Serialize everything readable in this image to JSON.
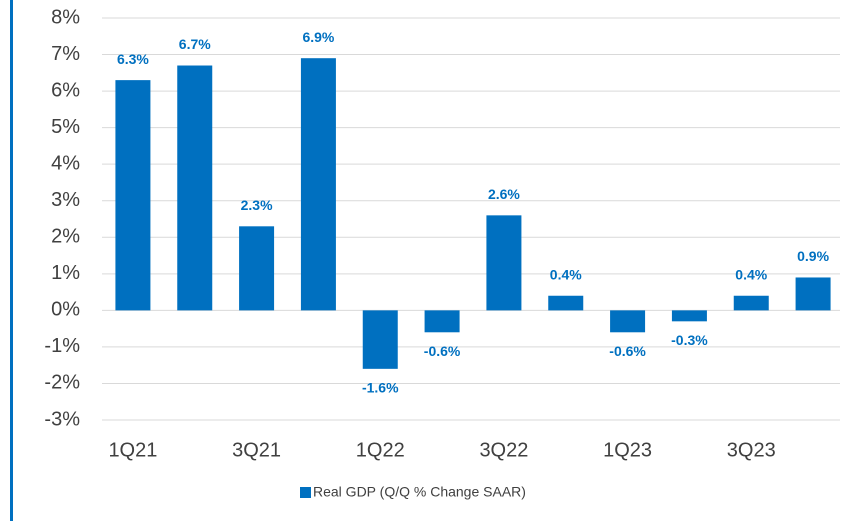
{
  "chart_data": {
    "type": "bar",
    "categories": [
      "1Q21",
      null,
      "3Q21",
      null,
      "1Q22",
      null,
      "3Q22",
      null,
      "1Q23",
      null,
      "3Q23",
      null
    ],
    "series": [
      {
        "name": "Real GDP (Q/Q % Change SAAR)",
        "color": "#0070c0",
        "values": [
          6.3,
          6.7,
          2.3,
          6.9,
          -1.6,
          -0.6,
          2.6,
          0.4,
          -0.6,
          -0.3,
          0.4,
          0.9
        ],
        "value_labels": [
          "6.3%",
          "6.7%",
          "2.3%",
          "6.9%",
          "-1.6%",
          "-0.6%",
          "2.6%",
          "0.4%",
          "-0.6%",
          "-0.3%",
          "0.4%",
          "0.9%"
        ]
      }
    ],
    "ylim": [
      -3,
      8
    ],
    "yticks": [
      {
        "value": -3,
        "label": "-3%"
      },
      {
        "value": -2,
        "label": "-2%"
      },
      {
        "value": -1,
        "label": "-1%"
      },
      {
        "value": 0,
        "label": "0%"
      },
      {
        "value": 1,
        "label": "1%"
      },
      {
        "value": 2,
        "label": "2%"
      },
      {
        "value": 3,
        "label": "3%"
      },
      {
        "value": 4,
        "label": "4%"
      },
      {
        "value": 5,
        "label": "5%"
      },
      {
        "value": 6,
        "label": "6%"
      },
      {
        "value": 7,
        "label": "7%"
      },
      {
        "value": 8,
        "label": "8%"
      }
    ],
    "grid": true,
    "legend": "bottom"
  }
}
